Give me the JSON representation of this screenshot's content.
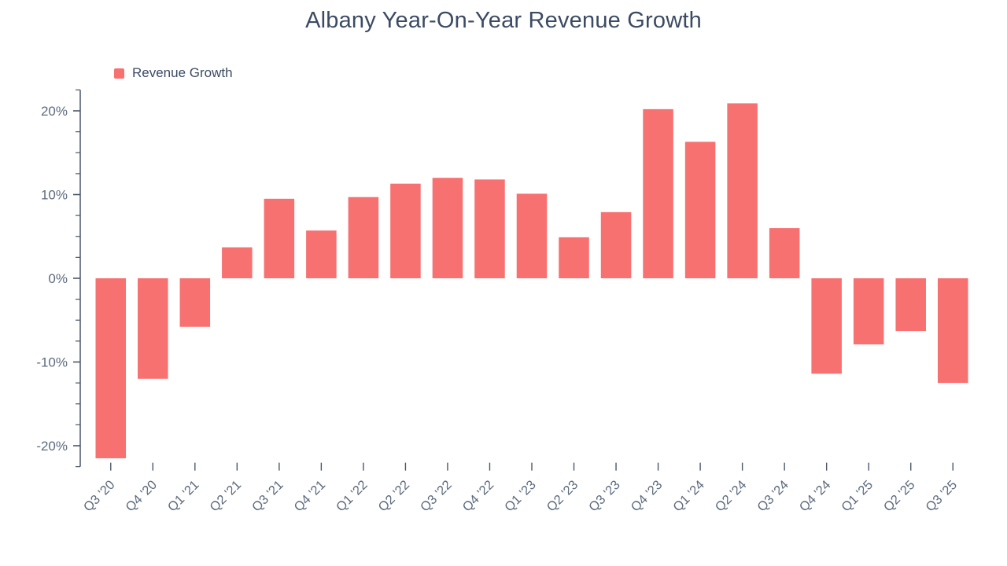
{
  "title": "Albany Year-On-Year Revenue Growth",
  "legend": {
    "label": "Revenue Growth",
    "color": "#f87171"
  },
  "axis": {
    "y_major_tick_labels": [
      "20%",
      "10%",
      "0%",
      "-10%",
      "-20%"
    ],
    "label_color": "#5d6b7e",
    "tick_color": "#49576b"
  },
  "chart_data": {
    "type": "bar",
    "title": "Albany Year-On-Year Revenue Growth",
    "categories": [
      "Q3 '20",
      "Q4 '20",
      "Q1 '21",
      "Q2 '21",
      "Q3 '21",
      "Q4 '21",
      "Q1 '22",
      "Q2 '22",
      "Q3 '22",
      "Q4 '22",
      "Q1 '23",
      "Q2 '23",
      "Q3 '23",
      "Q4 '23",
      "Q1 '24",
      "Q2 '24",
      "Q3 '24",
      "Q4 '24",
      "Q1 '25",
      "Q2 '25",
      "Q3 '25"
    ],
    "values": [
      -21.5,
      -12.0,
      -5.8,
      3.7,
      9.5,
      5.7,
      9.7,
      11.3,
      12.0,
      11.8,
      10.1,
      4.9,
      7.9,
      20.2,
      16.3,
      20.9,
      6.0,
      -11.4,
      -7.9,
      -6.3,
      -12.5
    ],
    "unit": "%",
    "xlabel": "",
    "ylabel": "",
    "ylim": [
      -22.5,
      22.5
    ],
    "yticks_major": [
      -20,
      -10,
      0,
      10,
      20
    ],
    "ytick_minor_step": 2.5,
    "grid": false,
    "bar_color": "#f87171",
    "legend_entries": [
      "Revenue Growth"
    ],
    "legend_position": "top-left"
  }
}
